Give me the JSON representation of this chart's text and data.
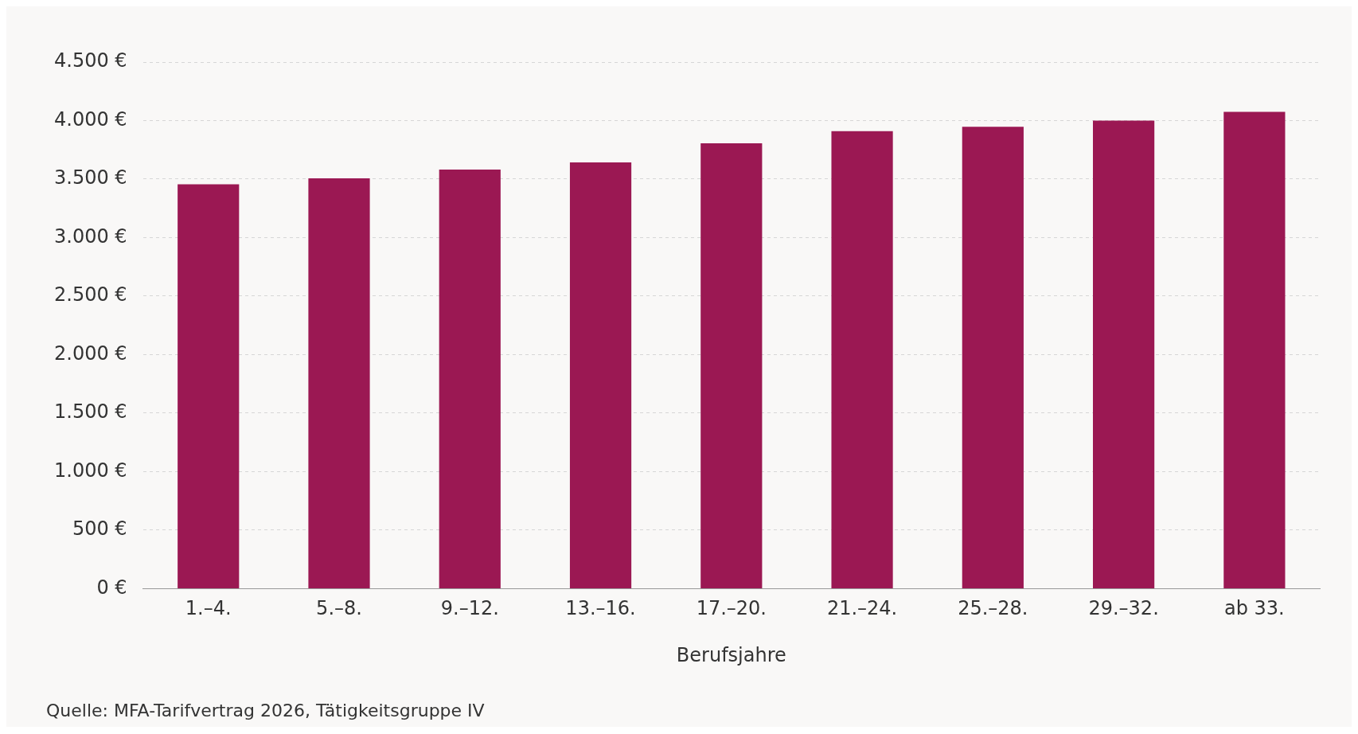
{
  "chart_data": {
    "type": "bar",
    "xlabel": "Berufsjahre",
    "categories": [
      "1.–4.",
      "5.–8.",
      "9.–12.",
      "13.–16.",
      "17.–20.",
      "21.–24.",
      "25.–28.",
      "29.–32.",
      "ab 33."
    ],
    "values": [
      3455,
      3507,
      3582,
      3642,
      3806,
      3910,
      3948,
      4000,
      4075
    ],
    "color": "#9b1853",
    "ylim": [
      0,
      4500
    ],
    "yticks": [
      {
        "value": 0,
        "label": "0 €"
      },
      {
        "value": 500,
        "label": "500 €"
      },
      {
        "value": 1000,
        "label": "1.000 €"
      },
      {
        "value": 1500,
        "label": "1.500 €"
      },
      {
        "value": 2000,
        "label": "2.000 €"
      },
      {
        "value": 2500,
        "label": "2.500 €"
      },
      {
        "value": 3000,
        "label": "3.000 €"
      },
      {
        "value": 3500,
        "label": "3.500 €"
      },
      {
        "value": 4000,
        "label": "4.000 €"
      },
      {
        "value": 4500,
        "label": "4.500 €"
      }
    ],
    "grid": "y",
    "legend": false,
    "annotations": [
      "Quelle: MFA-Tarifvertrag 2026, Tätigkeitsgruppe IV"
    ]
  }
}
